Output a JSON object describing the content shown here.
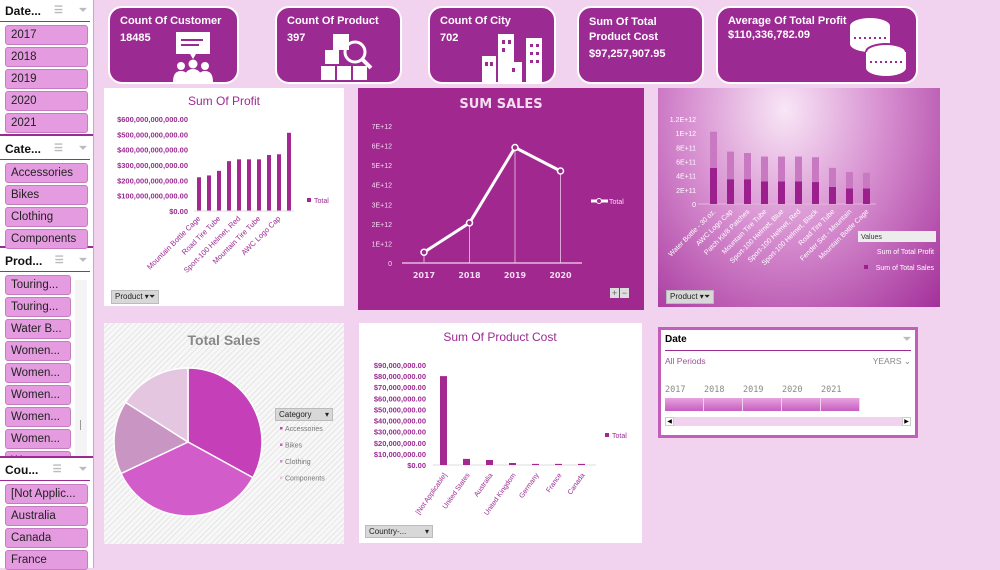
{
  "slicers": {
    "date": {
      "title": "Date...",
      "items": [
        "2017",
        "2018",
        "2019",
        "2020",
        "2021"
      ]
    },
    "category": {
      "title": "Cate...",
      "items": [
        "Accessories",
        "Bikes",
        "Clothing",
        "Components"
      ]
    },
    "product": {
      "title": "Prod...",
      "items": [
        "Touring...",
        "Touring...",
        "Water B...",
        "Women...",
        "Women...",
        "Women...",
        "Women...",
        "Women...",
        "Women..."
      ]
    },
    "country": {
      "title": "Cou...",
      "items": [
        "[Not Applic...",
        "Australia",
        "Canada",
        "France"
      ]
    }
  },
  "kpis": [
    {
      "label": "Count Of Customer",
      "value": "18485",
      "icon": "customers-presentation-icon"
    },
    {
      "label": "Count Of  Product",
      "value": "397",
      "icon": "product-search-boxes-icon"
    },
    {
      "label": "Count Of City",
      "value": "702",
      "icon": "city-buildings-icon"
    },
    {
      "label": "Sum Of Total Product Cost",
      "value": "$97,257,907.95",
      "icon": ""
    },
    {
      "label": "Average Of Total Profit",
      "value": "$110,336,782.09",
      "icon": "coins-icon"
    }
  ],
  "colors": {
    "accent": "#9c2a93",
    "bar": "#a3288f",
    "background": "#f2d3ef",
    "slicer_item": "#e59be0"
  },
  "chart_data": [
    {
      "id": "profit",
      "type": "bar",
      "title": "Sum Of Profit",
      "ylim": [
        0,
        600000000000
      ],
      "y_ticks": [
        "$0.00",
        "$100,000,000,000.00",
        "$200,000,000,000.00",
        "$300,000,000,000.00",
        "$400,000,000,000.00",
        "$500,000,000,000.00",
        "$600,000,000,000.00"
      ],
      "x_tick_labels": [
        "Mountain Bottle Cage",
        "Road Tire Tube",
        "Sport-100 Helmet, Red",
        "Mountain Tire Tube",
        "AWC Logo Cap"
      ],
      "values": [
        220000000000,
        232000000000,
        262000000000,
        325000000000,
        337000000000,
        337000000000,
        337000000000,
        365000000000,
        370000000000,
        510000000000
      ],
      "legend": "Total",
      "filter": "Product"
    },
    {
      "id": "sales",
      "type": "line",
      "title": "SUM SALES",
      "categories": [
        "2017",
        "2018",
        "2019",
        "2020"
      ],
      "values": [
        550000000000,
        2050000000000,
        5900000000000,
        4700000000000
      ],
      "ylim": [
        0,
        7000000000000
      ],
      "y_ticks": [
        "0",
        "1E+12",
        "2E+12",
        "3E+12",
        "4E+12",
        "5E+12",
        "6E+12",
        "7E+12"
      ],
      "legend": "Total",
      "buttons": [
        "+",
        "−"
      ]
    },
    {
      "id": "stacked",
      "type": "bar",
      "stacked": true,
      "ylim": [
        0,
        1200000000000
      ],
      "y_ticks": [
        "0",
        "2E+11",
        "4E+11",
        "6E+11",
        "8E+11",
        "1E+12",
        "1.2E+12"
      ],
      "categories": [
        "Water Bottle - 30 oz.",
        "AWC Logo Cap",
        "Patch Kit/8 Patches",
        "Mountain Tire Tube",
        "Sport-100 Helmet, Blue",
        "Sport-100 Helmet, Red",
        "Sport-100 Helmet, Black",
        "Road Tire Tube",
        "Fender Set - Mountain",
        "Mountain Bottle Cage"
      ],
      "series": [
        {
          "name": "Sum of Total Sales",
          "values": [
            510000000000,
            350000000000,
            350000000000,
            320000000000,
            320000000000,
            320000000000,
            310000000000,
            240000000000,
            220000000000,
            220000000000
          ]
        },
        {
          "name": "Sum of Total Profit",
          "values": [
            510000000000,
            390000000000,
            370000000000,
            350000000000,
            350000000000,
            350000000000,
            350000000000,
            270000000000,
            230000000000,
            220000000000
          ]
        }
      ],
      "legend_title": "Values",
      "filter": "Product"
    },
    {
      "id": "pie",
      "type": "pie",
      "title": "Total Sales",
      "categories": [
        "Accessories",
        "Bikes",
        "Clothing",
        "Components"
      ],
      "values": [
        33,
        35,
        16,
        16
      ],
      "legend_title": "Category",
      "colors": [
        "#c43fb8",
        "#d35ccb",
        "#c995c3",
        "#e4c6e0"
      ]
    },
    {
      "id": "cost",
      "type": "bar",
      "title": "Sum Of Product Cost",
      "ylim": [
        0,
        90000000
      ],
      "y_ticks": [
        "$0.00",
        "$10,000,000.00",
        "$20,000,000.00",
        "$30,000,000.00",
        "$40,000,000.00",
        "$50,000,000.00",
        "$60,000,000.00",
        "$70,000,000.00",
        "$80,000,000.00",
        "$90,000,000.00"
      ],
      "categories": [
        "[Not Applicable]",
        "United States",
        "Australia",
        "United Kingdom",
        "Germany",
        "France",
        "Canada"
      ],
      "values": [
        80000000,
        5500000,
        4500000,
        1800000,
        1000000,
        1000000,
        1000000
      ],
      "legend": "Total",
      "filter": "Country-..."
    }
  ],
  "timeline": {
    "title": "Date",
    "period": "All Periods",
    "level": "YEARS",
    "years": [
      "2017",
      "2018",
      "2019",
      "2020",
      "2021"
    ]
  }
}
